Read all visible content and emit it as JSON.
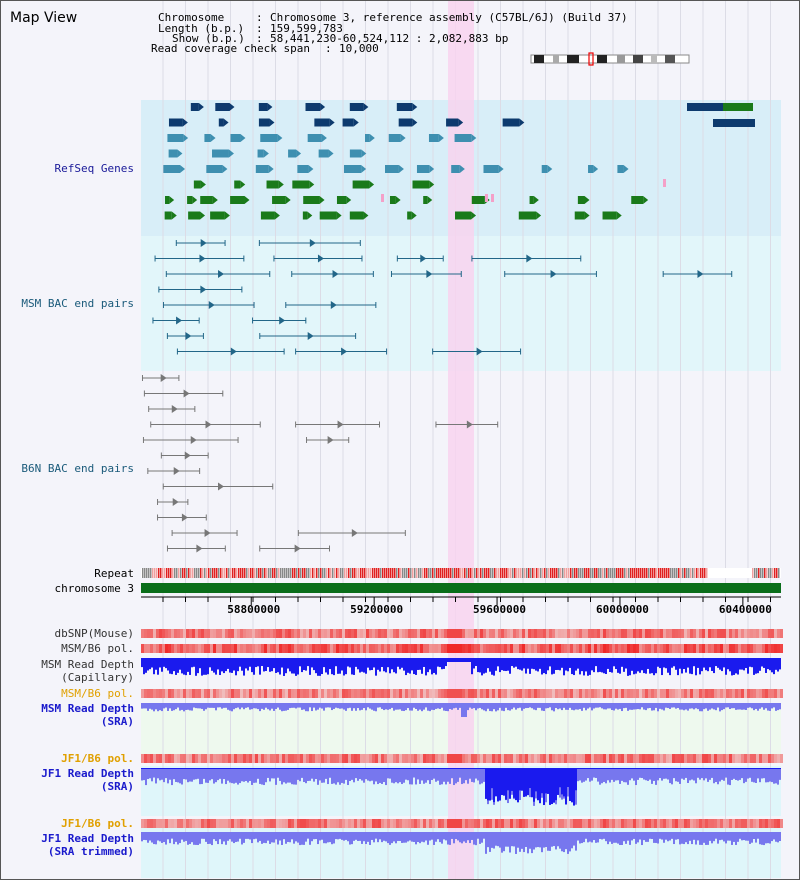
{
  "title": "Map View",
  "info": {
    "chromosome_key": "Chromosome",
    "chromosome_val": "Chromosome 3, reference assembly (C57BL/6J) (Build 37)",
    "length_key": "Length (b.p.)",
    "length_val": "159,599,783",
    "show_key": "Show (b.p.)",
    "show_val": "58,441,230-60,524,112 : 2,082,883 bp",
    "span_key": "Read coverage check span",
    "span_val": "10,000"
  },
  "tracks": {
    "refseq": "RefSeq Genes",
    "msm_bac": "MSM BAC end pairs",
    "b6n_bac": "B6N BAC end pairs",
    "repeat": "Repeat",
    "chromosome": "chromosome 3",
    "dbsnp": "dbSNP(Mouse)",
    "msm_b6_pol": "MSM/B6 pol.",
    "msm_depth_cap_1": "MSM Read Depth",
    "msm_depth_cap_2": "(Capillary)",
    "msm_b6_pol_2": "MSM/B6 pol.",
    "msm_depth_sra_1": "MSM Read Depth",
    "msm_depth_sra_2": "(SRA)",
    "jf1_b6_pol": "JF1/B6 pol.",
    "jf1_depth_sra_1": "JF1 Read Depth",
    "jf1_depth_sra_2": "(SRA)",
    "jf1_b6_pol_2": "JF1/B6 pol.",
    "jf1_depth_trim_1": "JF1 Read Depth",
    "jf1_depth_trim_2": "(SRA trimmed)"
  },
  "ruler": {
    "ticks": [
      "58800000",
      "59200000",
      "59600000",
      "60000000",
      "60400000"
    ],
    "range": [
      58441230,
      60524112
    ]
  },
  "colors": {
    "refseq_bg": "#d8eef8",
    "msm_bg": "#e2f6fa",
    "b6n_bg": "#f4f4fa",
    "highlight": "#f8d4ee",
    "gene_dark": "#0d3a6e",
    "gene_mid": "#3e8fb0",
    "gene_green": "#1a7a1a",
    "msm_pair": "#226688",
    "b6n_pair": "#777777",
    "chrom": "#0a6e1a",
    "depth_blue": "#1a1aee",
    "depth_light": "#7777ee",
    "label_refseq": "#1a1a99",
    "label_msm": "#1a5a7a",
    "label_orange": "#e0a000",
    "label_jf1": "#1a1acc"
  }
}
